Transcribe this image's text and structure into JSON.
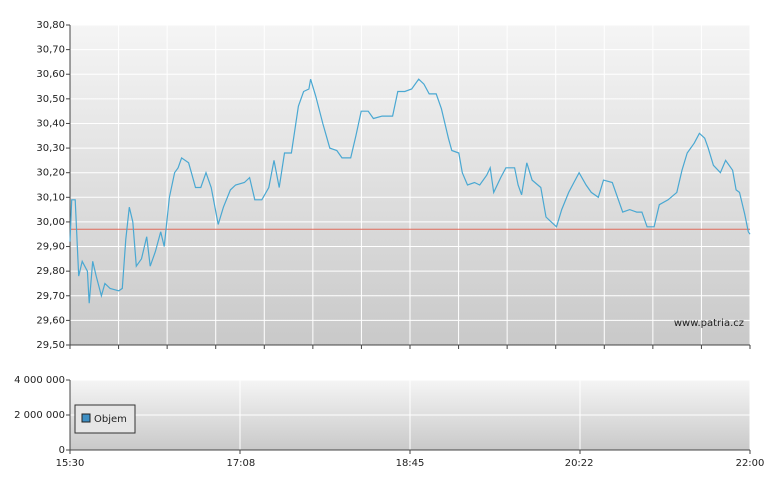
{
  "chart_data": [
    {
      "type": "line",
      "watermark": "www.patria.cz",
      "ylim": [
        29.5,
        30.8
      ],
      "yticks": [
        {
          "value": 29.5,
          "label": "29,50"
        },
        {
          "value": 29.6,
          "label": "29,60"
        },
        {
          "value": 29.7,
          "label": "29,70"
        },
        {
          "value": 29.8,
          "label": "29,80"
        },
        {
          "value": 29.9,
          "label": "29,90"
        },
        {
          "value": 30.0,
          "label": "30,00"
        },
        {
          "value": 30.1,
          "label": "30,10"
        },
        {
          "value": 30.2,
          "label": "30,20"
        },
        {
          "value": 30.3,
          "label": "30,30"
        },
        {
          "value": 30.4,
          "label": "30,40"
        },
        {
          "value": 30.5,
          "label": "30,50"
        },
        {
          "value": 30.6,
          "label": "30,60"
        },
        {
          "value": 30.7,
          "label": "30,70"
        },
        {
          "value": 30.8,
          "label": "30,80"
        }
      ],
      "xlim": [
        "15:30",
        "22:00"
      ],
      "grid": true,
      "hline": {
        "value": 29.97,
        "color": "#e06a5a"
      },
      "x": [
        "15:30",
        "15:31",
        "15:33",
        "15:35",
        "15:37",
        "15:40",
        "15:41",
        "15:43",
        "15:45",
        "15:48",
        "15:50",
        "15:53",
        "15:58",
        "16:00",
        "16:02",
        "16:04",
        "16:06",
        "16:08",
        "16:11",
        "16:14",
        "16:16",
        "16:19",
        "16:22",
        "16:24",
        "16:27",
        "16:30",
        "16:32",
        "16:34",
        "16:38",
        "16:40",
        "16:42",
        "16:45",
        "16:48",
        "16:51",
        "16:55",
        "16:58",
        "17:02",
        "17:05",
        "17:10",
        "17:13",
        "17:16",
        "17:20",
        "17:24",
        "17:27",
        "17:30",
        "17:33",
        "17:37",
        "17:41",
        "17:44",
        "17:47",
        "17:48",
        "17:51",
        "17:55",
        "17:59",
        "18:03",
        "18:06",
        "18:11",
        "18:14",
        "18:17",
        "18:21",
        "18:24",
        "18:29",
        "18:35",
        "18:38",
        "18:42",
        "18:46",
        "18:50",
        "18:53",
        "18:56",
        "19:00",
        "19:03",
        "19:07",
        "19:09",
        "19:13",
        "19:15",
        "19:18",
        "19:22",
        "19:25",
        "19:29",
        "19:31",
        "19:33",
        "19:37",
        "19:40",
        "19:45",
        "19:47",
        "19:49",
        "19:52",
        "19:55",
        "20:00",
        "20:03",
        "20:06",
        "20:09",
        "20:12",
        "20:16",
        "20:19",
        "20:22",
        "20:26",
        "20:29",
        "20:33",
        "20:36",
        "20:41",
        "20:44",
        "20:47",
        "20:51",
        "20:55",
        "20:58",
        "21:01",
        "21:05",
        "21:08",
        "21:13",
        "21:18",
        "21:21",
        "21:24",
        "21:28",
        "21:31",
        "21:34",
        "21:36",
        "21:39",
        "21:43",
        "21:46",
        "21:50",
        "21:52",
        "21:54",
        "21:57",
        "21:59",
        "22:00"
      ],
      "series": [
        {
          "color": "#4aa8d2",
          "values": [
            29.92,
            30.09,
            30.09,
            29.78,
            29.84,
            29.8,
            29.67,
            29.84,
            29.78,
            29.7,
            29.75,
            29.73,
            29.72,
            29.73,
            29.93,
            30.06,
            30.0,
            29.82,
            29.85,
            29.94,
            29.82,
            29.88,
            29.96,
            29.9,
            30.1,
            30.2,
            30.22,
            30.26,
            30.24,
            30.19,
            30.14,
            30.14,
            30.2,
            30.14,
            29.99,
            30.06,
            30.13,
            30.15,
            30.16,
            30.18,
            30.09,
            30.09,
            30.14,
            30.25,
            30.14,
            30.28,
            30.28,
            30.47,
            30.53,
            30.54,
            30.58,
            30.51,
            30.4,
            30.3,
            30.29,
            30.26,
            30.26,
            30.35,
            30.45,
            30.45,
            30.42,
            30.43,
            30.43,
            30.53,
            30.53,
            30.54,
            30.58,
            30.56,
            30.52,
            30.52,
            30.46,
            30.34,
            30.29,
            30.28,
            30.2,
            30.15,
            30.16,
            30.15,
            30.19,
            30.22,
            30.12,
            30.18,
            30.22,
            30.22,
            30.15,
            30.11,
            30.24,
            30.17,
            30.14,
            30.02,
            30.0,
            29.98,
            30.05,
            30.12,
            30.16,
            30.2,
            30.15,
            30.12,
            30.1,
            30.17,
            30.16,
            30.1,
            30.04,
            30.05,
            30.04,
            30.04,
            29.98,
            29.98,
            30.07,
            30.09,
            30.12,
            30.21,
            30.28,
            30.32,
            30.36,
            30.34,
            30.3,
            30.23,
            30.2,
            30.25,
            30.21,
            30.13,
            30.12,
            30.03,
            29.96,
            29.95
          ]
        }
      ]
    },
    {
      "type": "bar",
      "ylim": [
        0,
        4000000
      ],
      "yticks": [
        0,
        {
          "value": 2000000,
          "label": "2 000 000"
        },
        {
          "value": 4000000,
          "label": "4 000 000"
        }
      ],
      "xlim": [
        "15:30",
        "22:00"
      ],
      "xticks": [
        "15:30",
        "17:08",
        "18:45",
        "20:22",
        "22:00"
      ],
      "grid": true,
      "series": [
        {
          "name": "Objem",
          "color": "#3d8fc4"
        }
      ]
    }
  ]
}
